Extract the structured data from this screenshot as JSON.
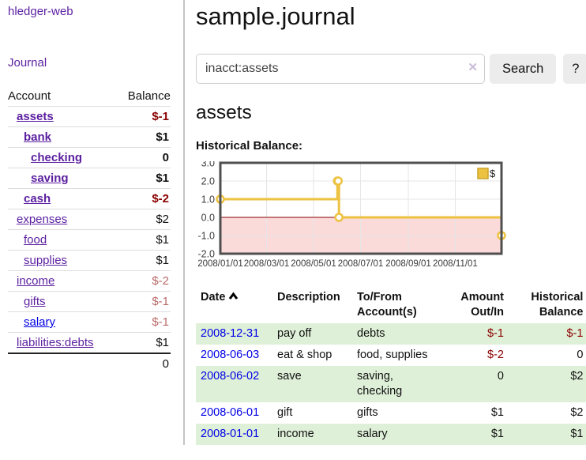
{
  "sidebar": {
    "brand": "hledger-web",
    "nav_journal": "Journal",
    "accounts_table": {
      "header_account": "Account",
      "header_balance": "Balance",
      "rows": [
        {
          "name": "assets",
          "balance": "$-1",
          "level": 0,
          "bold": true
        },
        {
          "name": "bank",
          "balance": "$1",
          "level": 1,
          "bold": true
        },
        {
          "name": "checking",
          "balance": "0",
          "level": 2,
          "bold": true
        },
        {
          "name": "saving",
          "balance": "$1",
          "level": 2,
          "bold": true
        },
        {
          "name": "cash",
          "balance": "$-2",
          "level": 1,
          "bold": true
        },
        {
          "name": "expenses",
          "balance": "$2",
          "level": 0,
          "bold": false
        },
        {
          "name": "food",
          "balance": "$1",
          "level": 1,
          "bold": false
        },
        {
          "name": "supplies",
          "balance": "$1",
          "level": 1,
          "bold": false
        },
        {
          "name": "income",
          "balance": "$-2",
          "level": 0,
          "bold": false
        },
        {
          "name": "gifts",
          "balance": "$-1",
          "level": 1,
          "bold": false
        },
        {
          "name": "salary",
          "balance": "$-1",
          "level": 1,
          "bold": false
        },
        {
          "name": "liabilities:debts",
          "balance": "$1",
          "level": 0,
          "bold": false
        }
      ],
      "total": "0"
    }
  },
  "main": {
    "title": "sample.journal",
    "search": {
      "value": "inacct:assets",
      "clear_icon": "✕",
      "search_button": "Search",
      "help_button": "?"
    },
    "account_heading": "assets",
    "chart_label": "Historical Balance:"
  },
  "chart_data": {
    "type": "line",
    "title": "Historical Balance",
    "legend": "$",
    "legend_position": "top-right",
    "grid": true,
    "step": true,
    "xlim": [
      0,
      365
    ],
    "ylim": [
      -2,
      3
    ],
    "y_ticks": [
      3.0,
      2.0,
      1.0,
      0.0,
      -1.0,
      -2.0
    ],
    "x_ticks": [
      {
        "x": 0,
        "label": "2008/01/01"
      },
      {
        "x": 60,
        "label": "2008/03/01"
      },
      {
        "x": 121,
        "label": "2008/05/01"
      },
      {
        "x": 182,
        "label": "2008/07/01"
      },
      {
        "x": 244,
        "label": "2008/09/01"
      },
      {
        "x": 305,
        "label": "2008/11/01"
      }
    ],
    "series": [
      {
        "name": "$",
        "points": [
          {
            "x": 0,
            "y": 1,
            "date": "2008-01-01"
          },
          {
            "x": 152,
            "y": 2,
            "date": "2008-06-01"
          },
          {
            "x": 153,
            "y": 2,
            "date": "2008-06-02"
          },
          {
            "x": 154,
            "y": 0,
            "date": "2008-06-03"
          },
          {
            "x": 365,
            "y": -1,
            "date": "2008-12-31"
          }
        ]
      }
    ],
    "colors": {
      "line": "#edc240",
      "marker_fill": "#ffffff",
      "legend_square_border": "#c9a42a",
      "negative_region_fill": "#fbdada",
      "zero_line": "#8b0000",
      "grid": "#e6e6e6",
      "border": "#4f4f4f",
      "tick_text": "#3c3c3c"
    }
  },
  "register": {
    "headers": {
      "date": "Date",
      "sort_icon": "chevron-up",
      "description": "Description",
      "tofrom_line1": "To/From",
      "tofrom_line2": "Account(s)",
      "amount_line1": "Amount",
      "amount_line2": "Out/In",
      "balance_line1": "Historical",
      "balance_line2": "Balance"
    },
    "rows": [
      {
        "date": "2008-12-31",
        "description": "pay off",
        "accounts": "debts",
        "amount": "$-1",
        "balance": "$-1"
      },
      {
        "date": "2008-06-03",
        "description": "eat & shop",
        "accounts": "food, supplies",
        "amount": "$-2",
        "balance": "0"
      },
      {
        "date": "2008-06-02",
        "description": "save",
        "accounts": "saving, checking",
        "amount": "0",
        "balance": "$2"
      },
      {
        "date": "2008-06-01",
        "description": "gift",
        "accounts": "gifts",
        "amount": "$1",
        "balance": "$2"
      },
      {
        "date": "2008-01-01",
        "description": "income",
        "accounts": "salary",
        "amount": "$1",
        "balance": "$1"
      }
    ]
  },
  "colors": {
    "link_purple": "#5b1fa0",
    "link_blue": "#0000e6",
    "negative_strong": "#8b0000",
    "negative_light": "#bb6a6a",
    "row_stripe_green": "#dff0d8",
    "button_bg": "#ececec"
  }
}
